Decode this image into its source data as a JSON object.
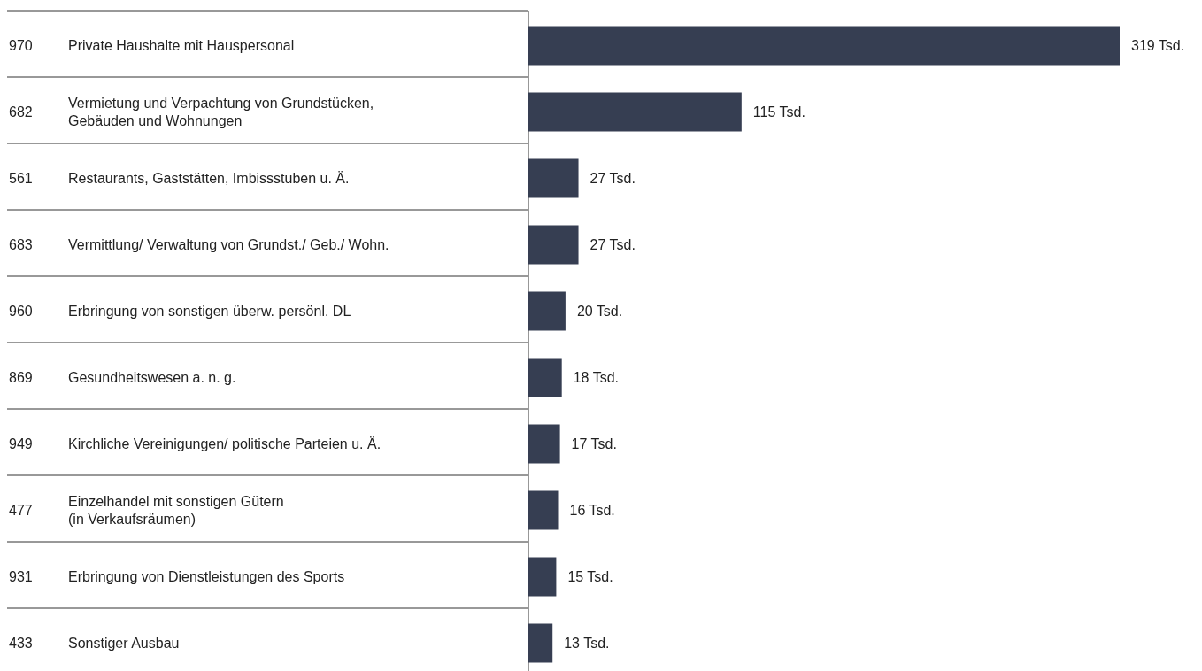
{
  "chart_data": {
    "type": "bar",
    "orientation": "horizontal",
    "categories": [
      "970 Private Haushalte mit Hauspersonal",
      "682 Vermietung und Verpachtung von Grundstücken,\nGebäuden und Wohnungen",
      "561 Restaurants, Gaststätten, Imbissstuben u. Ä.",
      "683 Vermittlung/ Verwaltung von Grundst./ Geb./ Wohn.",
      "960 Erbringung von sonstigen überw. persönl. DL",
      "869 Gesundheitswesen a. n. g.",
      "949 Kirchliche Vereinigungen/ politische Parteien u. Ä.",
      "477 Einzelhandel mit sonstigen Gütern\n(in Verkaufsräumen)",
      "931 Erbringung von Dienstleistungen des Sports",
      "433 Sonstiger Ausbau"
    ],
    "values": [
      319,
      115,
      27,
      27,
      20,
      18,
      17,
      16,
      15,
      13
    ],
    "color": "#363e52",
    "value_labels": [
      "319 Tsd.",
      "115 Tsd.",
      "27 Tsd.",
      "27 Tsd.",
      "20 Tsd.",
      "18 Tsd.",
      "17 Tsd.",
      "16 Tsd.",
      "15 Tsd.",
      "13 Tsd."
    ]
  }
}
